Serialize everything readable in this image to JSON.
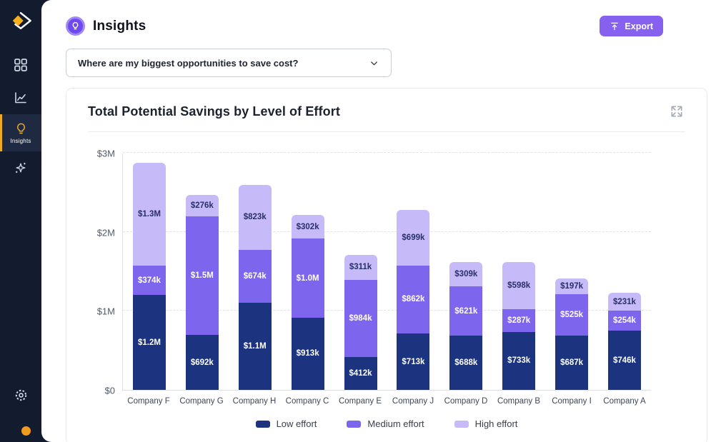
{
  "colors": {
    "sidebar_bg": "#131c2e",
    "accent_purple": "#8661f0",
    "active_amber": "#efa91f",
    "status_orange": "#f29a1f",
    "bar_low": "#1c337f",
    "bar_medium": "#7d66ed",
    "bar_high": "#c6baf8"
  },
  "sidebar": {
    "icons": [
      "logo",
      "grid",
      "line-chart",
      "lightbulb",
      "sparkles",
      "gear"
    ],
    "active_item_label": "Insights",
    "status_dot_color": "#f29a1f"
  },
  "header": {
    "title": "Insights",
    "export_label": "Export"
  },
  "question": {
    "value": "Where are my biggest opportunities to save cost?"
  },
  "card": {
    "title": "Total Potential Savings by Level of Effort"
  },
  "chart_data": {
    "type": "bar",
    "stacked": true,
    "title": "Total Potential Savings by Level of Effort",
    "xlabel": "",
    "ylabel": "",
    "ylim_k": [
      0,
      3000
    ],
    "grid": "dashed horizontal",
    "legend_position": "bottom",
    "y_ticks": [
      {
        "label": "$0",
        "k": 0
      },
      {
        "label": "$1M",
        "k": 1000
      },
      {
        "label": "$2M",
        "k": 2000
      },
      {
        "label": "$3M",
        "k": 3000
      }
    ],
    "categories": [
      "Company F",
      "Company G",
      "Company H",
      "Company C",
      "Company E",
      "Company J",
      "Company D",
      "Company B",
      "Company I",
      "Company A"
    ],
    "series": [
      {
        "name": "Low effort",
        "color": "#1c337f",
        "label_color": "#ffffff",
        "values_k": [
          1200,
          692,
          1100,
          913,
          412,
          713,
          688,
          733,
          687,
          746
        ],
        "labels": [
          "$1.2M",
          "$692k",
          "$1.1M",
          "$913k",
          "$412k",
          "$713k",
          "$688k",
          "$733k",
          "$687k",
          "$746k"
        ]
      },
      {
        "name": "Medium effort",
        "color": "#7d66ed",
        "label_color": "#ffffff",
        "values_k": [
          374,
          1500,
          674,
          1000,
          984,
          862,
          621,
          287,
          525,
          254
        ],
        "labels": [
          "$374k",
          "$1.5M",
          "$674k",
          "$1.0M",
          "$984k",
          "$862k",
          "$621k",
          "$287k",
          "$525k",
          "$254k"
        ]
      },
      {
        "name": "High effort",
        "color": "#c6baf8",
        "label_color": "#28306b",
        "values_k": [
          1300,
          276,
          823,
          302,
          311,
          699,
          309,
          598,
          197,
          231
        ],
        "labels": [
          "$1.3M",
          "$276k",
          "$823k",
          "$302k",
          "$311k",
          "$699k",
          "$309k",
          "$598k",
          "$197k",
          "$231k"
        ]
      }
    ]
  }
}
